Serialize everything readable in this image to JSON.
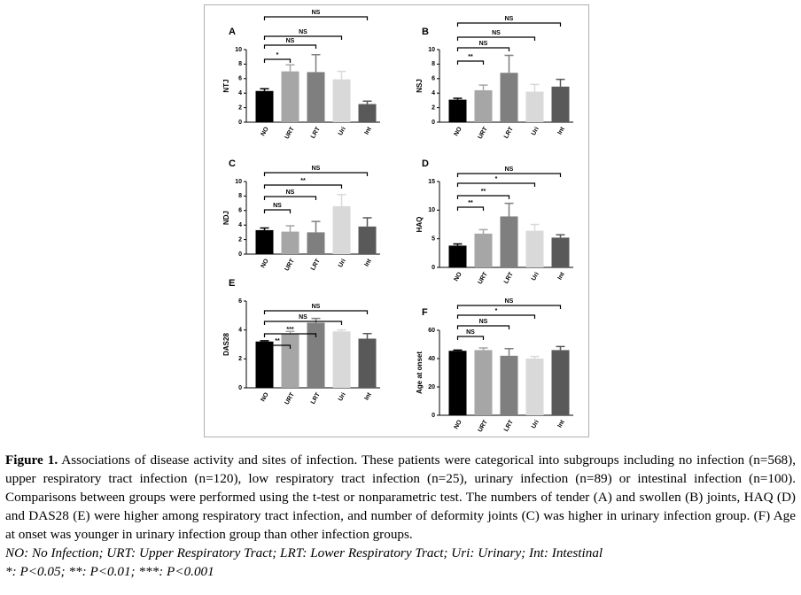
{
  "chart_data": [
    {
      "type": "bar",
      "panel": "A",
      "ylabel": "NTJ",
      "categories": [
        "NO",
        "URT",
        "LRT",
        "Uri",
        "Int"
      ],
      "values": [
        4.3,
        7.0,
        6.9,
        5.9,
        2.5
      ],
      "errors": [
        0.3,
        0.9,
        2.4,
        1.1,
        0.4
      ],
      "colors": [
        "#000000",
        "#a6a6a6",
        "#7f7f7f",
        "#d9d9d9",
        "#595959"
      ],
      "significance": [
        null,
        "*",
        "NS",
        "NS",
        "NS"
      ],
      "ylim": [
        0,
        10
      ],
      "yticks": [
        0,
        2,
        4,
        6,
        8,
        10
      ]
    },
    {
      "type": "bar",
      "panel": "B",
      "ylabel": "NSJ",
      "categories": [
        "NO",
        "URT",
        "LRT",
        "Uri",
        "Int"
      ],
      "values": [
        3.1,
        4.4,
        6.8,
        4.2,
        4.9
      ],
      "errors": [
        0.2,
        0.7,
        2.4,
        1.0,
        1.0
      ],
      "colors": [
        "#000000",
        "#a6a6a6",
        "#7f7f7f",
        "#d9d9d9",
        "#595959"
      ],
      "significance": [
        null,
        "**",
        "NS",
        "NS",
        "NS"
      ],
      "ylim": [
        0,
        10
      ],
      "yticks": [
        0,
        2,
        4,
        6,
        8,
        10
      ]
    },
    {
      "type": "bar",
      "panel": "C",
      "ylabel": "NDJ",
      "categories": [
        "NO",
        "URT",
        "LRT",
        "Uri",
        "Int"
      ],
      "values": [
        3.3,
        3.1,
        3.0,
        6.6,
        3.8
      ],
      "errors": [
        0.3,
        0.8,
        1.5,
        1.6,
        1.2
      ],
      "colors": [
        "#000000",
        "#a6a6a6",
        "#7f7f7f",
        "#d9d9d9",
        "#595959"
      ],
      "significance": [
        null,
        "NS",
        "NS",
        "**",
        "NS"
      ],
      "ylim": [
        0,
        10
      ],
      "yticks": [
        0,
        2,
        4,
        6,
        8,
        10
      ]
    },
    {
      "type": "bar",
      "panel": "D",
      "ylabel": "HAQ",
      "categories": [
        "NO",
        "URT",
        "LRT",
        "Uri",
        "Int"
      ],
      "values": [
        3.8,
        5.9,
        8.9,
        6.4,
        5.2
      ],
      "errors": [
        0.3,
        0.7,
        2.3,
        1.1,
        0.5
      ],
      "colors": [
        "#000000",
        "#a6a6a6",
        "#7f7f7f",
        "#d9d9d9",
        "#595959"
      ],
      "significance": [
        null,
        "**",
        "**",
        "*",
        "NS"
      ],
      "ylim": [
        0,
        15
      ],
      "yticks": [
        0,
        5,
        10,
        15
      ]
    },
    {
      "type": "bar",
      "panel": "E",
      "ylabel": "DAS28",
      "categories": [
        "NO",
        "URT",
        "LRT",
        "Uri",
        "Int"
      ],
      "values": [
        3.2,
        3.7,
        4.5,
        3.9,
        3.4
      ],
      "errors": [
        0.05,
        0.2,
        0.3,
        0.1,
        0.35
      ],
      "colors": [
        "#000000",
        "#a6a6a6",
        "#7f7f7f",
        "#d9d9d9",
        "#595959"
      ],
      "significance": [
        null,
        "**",
        "***",
        "NS",
        "NS"
      ],
      "ylim": [
        0,
        6
      ],
      "yticks": [
        0,
        2,
        4,
        6
      ]
    },
    {
      "type": "bar",
      "panel": "F",
      "ylabel": "Age at onset",
      "categories": [
        "NO",
        "URT",
        "LRT",
        "Uri",
        "Int"
      ],
      "values": [
        45.5,
        46,
        42,
        40,
        46
      ],
      "errors": [
        0.5,
        1.5,
        5,
        1.5,
        2.5
      ],
      "colors": [
        "#000000",
        "#a6a6a6",
        "#7f7f7f",
        "#d9d9d9",
        "#595959"
      ],
      "significance": [
        null,
        "NS",
        "NS",
        "*",
        "NS"
      ],
      "ylim": [
        0,
        60
      ],
      "yticks": [
        0,
        20,
        40,
        60
      ]
    }
  ],
  "caption": {
    "label": "Figure 1.",
    "text": "Associations of disease activity and sites of infection. These patients were categorical into subgroups including no infection (n=568), upper respiratory tract infection (n=120), low respiratory tract infection (n=25), urinary infection (n=89) or intestinal infection (n=100). Comparisons between groups were performed using the t-test or nonparametric test. The numbers of tender (A) and swollen (B) joints, HAQ (D) and DAS28 (E) were higher among respiratory tract infection, and number of deformity joints (C) was higher in urinary infection group. (F) Age at onset was younger in urinary infection group than other infection groups.",
    "abbreviations": "NO: No Infection; URT: Upper Respiratory Tract; LRT: Lower Respiratory Tract; Uri: Urinary; Int: Intestinal",
    "significance_key": "*: P<0.05; **: P<0.01; ***: P<0.001"
  }
}
